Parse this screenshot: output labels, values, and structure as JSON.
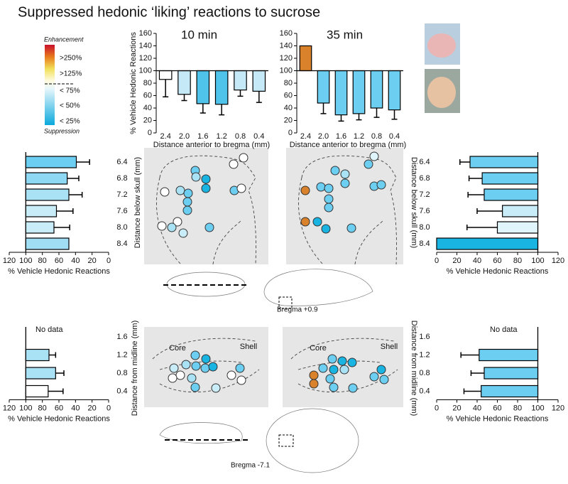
{
  "title": "Suppressed hedonic ‘liking’ reactions to sucrose",
  "legend": {
    "top": "Enhancement",
    "high": ">250%",
    "mid_high": ">125%",
    "low1": "< 75%",
    "low2": "< 50%",
    "low3": "< 25%",
    "bottom": "Suppression"
  },
  "annotations": {
    "bregma_top": "Bregma +0.9",
    "bregma_bottom": "Bregma -7.1",
    "core": "Core",
    "shell": "Shell"
  },
  "chart_data": [
    {
      "type": "bar",
      "orientation": "vertical",
      "title": "10 min",
      "y_label": "% Vehicle Hedonic Reactions",
      "x_label": "Distance anterior to bregma (mm)",
      "categories": [
        "2.4",
        "2.0",
        "1.6",
        "1.2",
        "0.8",
        "0.4"
      ],
      "values": [
        86,
        62,
        47,
        46,
        69,
        67
      ],
      "errors": [
        28,
        10,
        15,
        17,
        10,
        18
      ],
      "colors": [
        "#ffffff",
        "#c5e9f7",
        "#4fc3ea",
        "#4fc3ea",
        "#c5e9f7",
        "#c5e9f7"
      ],
      "base": 100,
      "ylim": [
        0,
        160
      ],
      "yticks": [
        0,
        20,
        40,
        60,
        80,
        100,
        120,
        140,
        160
      ]
    },
    {
      "type": "bar",
      "orientation": "vertical",
      "title": "35 min",
      "x_label": "Distance anterior to bregma (mm)",
      "categories": [
        "2.4",
        "2.0",
        "1.6",
        "1.2",
        "0.8",
        "0.4"
      ],
      "values": [
        140,
        48,
        29,
        31,
        40,
        37
      ],
      "errors": [
        null,
        17,
        10,
        10,
        15,
        15
      ],
      "colors": [
        "#d9822b",
        "#6ccff2",
        "#6ccff2",
        "#6ccff2",
        "#6ccff2",
        "#6ccff2"
      ],
      "base": 100,
      "ylim": [
        0,
        160
      ],
      "yticks": [
        0,
        20,
        40,
        60,
        80,
        100,
        120,
        140,
        160
      ]
    },
    {
      "type": "bar",
      "orientation": "horizontal",
      "y_label": "Distance below skull (mm)",
      "x_label": "% Vehicle Hedonic Reactions",
      "categories": [
        "6.4",
        "6.8",
        "7.2",
        "7.6",
        "8.0",
        "8.4"
      ],
      "values": [
        39,
        50,
        48,
        63,
        66,
        48
      ],
      "errors": [
        16,
        14,
        16,
        20,
        19,
        null
      ],
      "colors": [
        "#6ccff2",
        "#8ed8f3",
        "#a9e2f5",
        "#c8edf8",
        "#c8edf8",
        "#a0def4"
      ],
      "base": 100,
      "xlim": [
        120,
        0
      ],
      "xticks": [
        120,
        100,
        80,
        60,
        40,
        20,
        0
      ]
    },
    {
      "type": "bar",
      "orientation": "horizontal",
      "y_label": "Distance below skull (mm)",
      "x_label": "% Vehicle Hedonic Reactions",
      "categories": [
        "6.4",
        "6.8",
        "7.2",
        "7.6",
        "8.0",
        "8.4"
      ],
      "values": [
        33,
        45,
        47,
        65,
        60,
        0
      ],
      "errors": [
        10,
        13,
        16,
        25,
        30,
        null
      ],
      "colors": [
        "#6ccff2",
        "#6ccff2",
        "#6ccff2",
        "#c8edf8",
        "#e0f4fb",
        "#1ab4e2"
      ],
      "base": 100,
      "xlim": [
        0,
        120
      ],
      "xticks": [
        0,
        20,
        40,
        60,
        80,
        100,
        120
      ]
    },
    {
      "type": "bar",
      "orientation": "horizontal",
      "y_label": "Distance from midline (mm)",
      "x_label": "% Vehicle Hedonic Reactions",
      "note": "No data",
      "categories": [
        "1.6",
        "1.2",
        "0.8",
        "0.4"
      ],
      "values": [
        null,
        72,
        64,
        73
      ],
      "errors": [
        null,
        8,
        10,
        18
      ],
      "colors": [
        null,
        "#a9e2f5",
        "#a9e2f5",
        "#ffffff"
      ],
      "base": 100,
      "xlim": [
        120,
        0
      ],
      "xticks": [
        120,
        100,
        80,
        60,
        40,
        20,
        0
      ]
    },
    {
      "type": "bar",
      "orientation": "horizontal",
      "y_label": "Distance from midline (mm)",
      "x_label": "% Vehicle Hedonic Reactions",
      "note": "No data",
      "categories": [
        "1.6",
        "1.2",
        "0.8",
        "0.4"
      ],
      "values": [
        null,
        42,
        47,
        44
      ],
      "errors": [
        null,
        18,
        13,
        17
      ],
      "colors": [
        null,
        "#6ccff2",
        "#6ccff2",
        "#6ccff2"
      ],
      "base": 100,
      "xlim": [
        0,
        120
      ],
      "xticks": [
        0,
        20,
        40,
        60,
        80,
        100,
        120
      ]
    }
  ]
}
